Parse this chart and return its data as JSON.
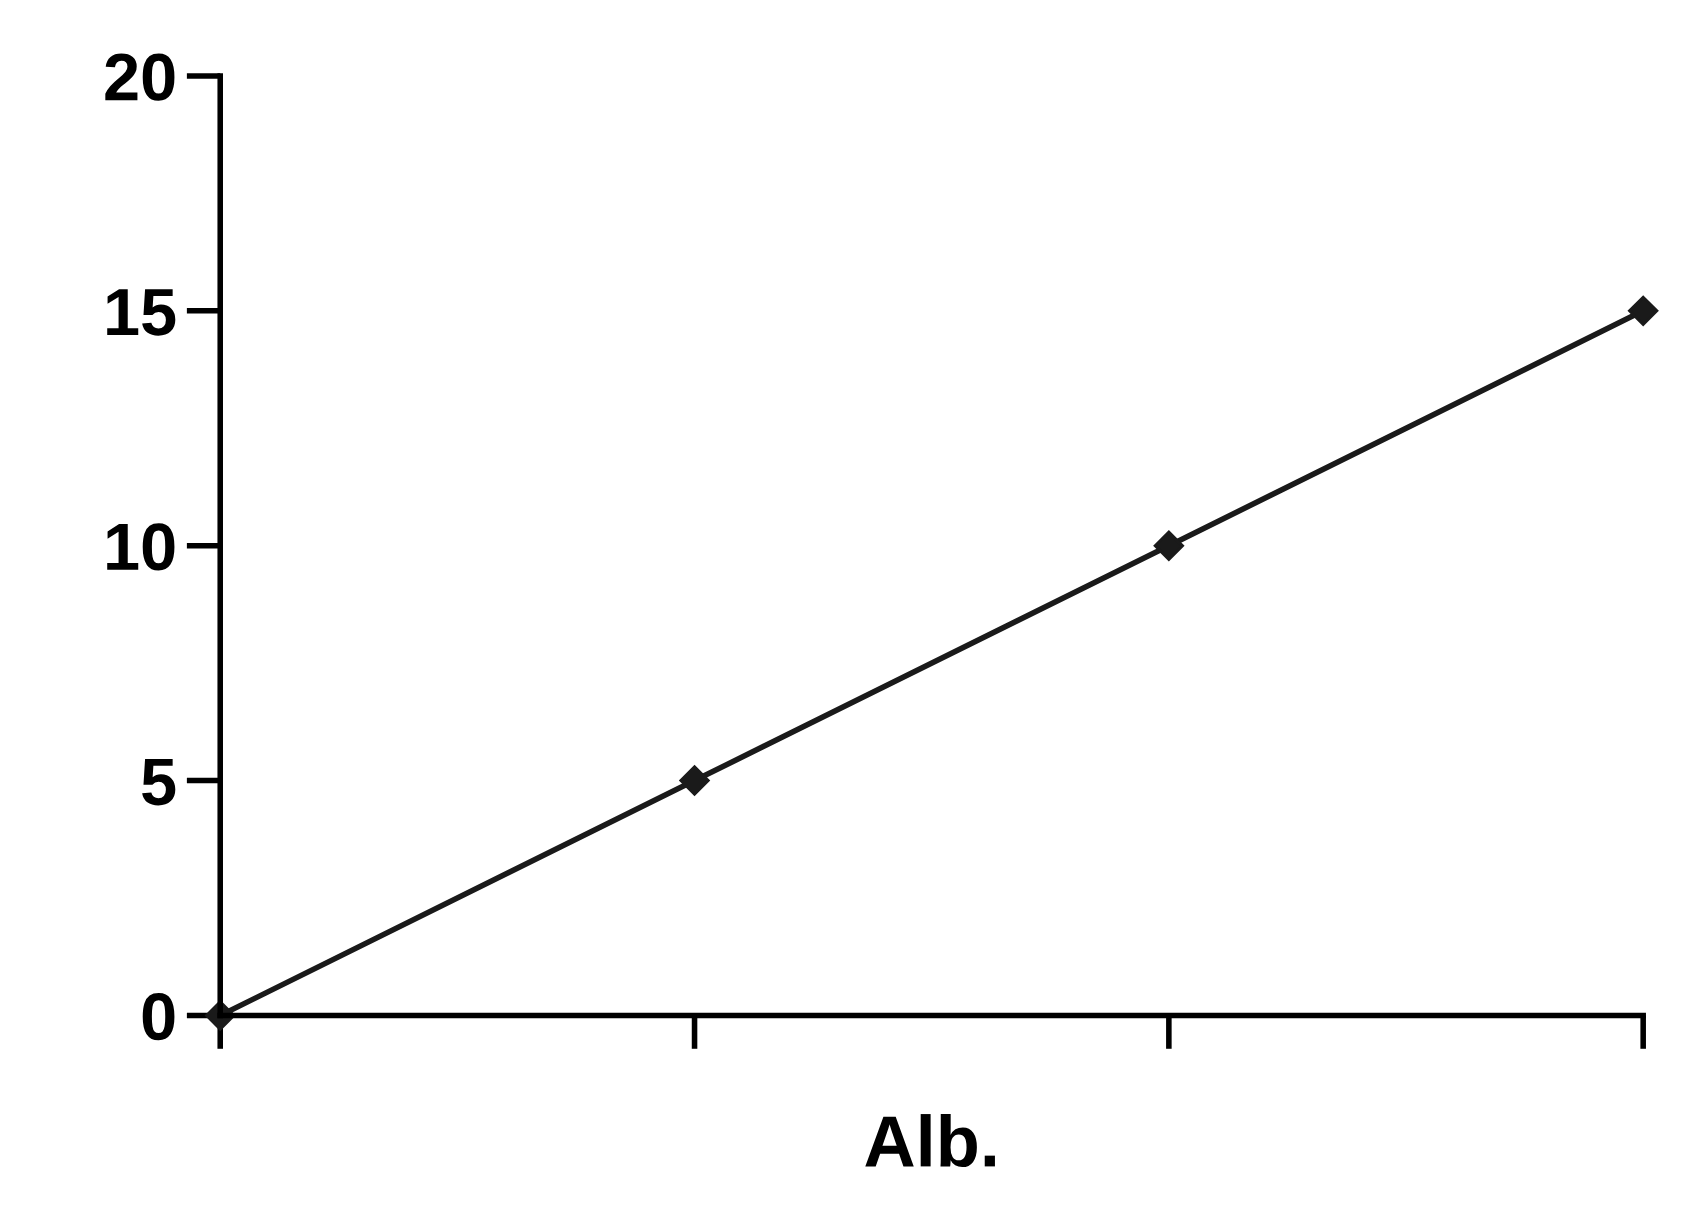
{
  "chart_data": {
    "type": "line",
    "xlabel": "Alb.",
    "categories": [
      null,
      null,
      null,
      null
    ],
    "series": [
      {
        "color": "#1a1a1a",
        "values": [
          0,
          5,
          10,
          15
        ]
      }
    ],
    "ylim": [
      0,
      20
    ],
    "yticks": [
      0,
      5,
      10,
      15,
      20
    ],
    "grid": false,
    "legend": false,
    "marker": "diamond",
    "line_style": "solid"
  }
}
